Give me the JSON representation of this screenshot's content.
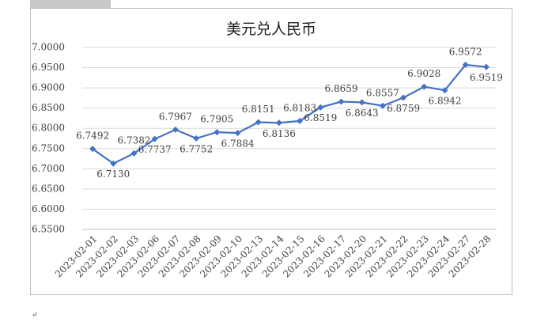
{
  "chart_data": {
    "type": "line",
    "title": "美元兑人民币",
    "categories": [
      "2023-02-01",
      "2023-02-02",
      "2023-02-03",
      "2023-02-06",
      "2023-02-07",
      "2023-02-08",
      "2023-02-09",
      "2023-02-10",
      "2023-02-13",
      "2023-02-14",
      "2023-02-15",
      "2023-02-16",
      "2023-02-17",
      "2023-02-20",
      "2023-02-21",
      "2023-02-22",
      "2023-02-23",
      "2023-02-24",
      "2023-02-27",
      "2023-02-28"
    ],
    "series": [
      {
        "name": "美元兑人民币",
        "color": "#4472c4",
        "values": [
          6.7492,
          6.713,
          6.7382,
          6.7737,
          6.7967,
          6.7752,
          6.7905,
          6.7884,
          6.8151,
          6.8136,
          6.8183,
          6.8519,
          6.8659,
          6.8643,
          6.8557,
          6.8759,
          6.9028,
          6.8942,
          6.9572,
          6.9519
        ],
        "value_labels": [
          "6.7492",
          "6.7130",
          "6.7382",
          "6.7737",
          "6.7967",
          "6.7752",
          "6.7905",
          "6.7884",
          "6.8151",
          "6.8136",
          "6.8183",
          "6.8519",
          "6.8659",
          "6.8643",
          "6.8557",
          "6.8759",
          "6.9028",
          "6.8942",
          "6.9572",
          "6.9519"
        ]
      }
    ],
    "ylim": [
      6.55,
      7.0
    ],
    "yticks": [
      {
        "value": 6.55,
        "label": "6.5500"
      },
      {
        "value": 6.6,
        "label": "6.6000"
      },
      {
        "value": 6.65,
        "label": "6.6500"
      },
      {
        "value": 6.7,
        "label": "6.7000"
      },
      {
        "value": 6.75,
        "label": "6.7500"
      },
      {
        "value": 6.8,
        "label": "6.8000"
      },
      {
        "value": 6.85,
        "label": "6.8500"
      },
      {
        "value": 6.9,
        "label": "6.9000"
      },
      {
        "value": 6.95,
        "label": "6.9500"
      },
      {
        "value": 7.0,
        "label": "7.0000"
      }
    ],
    "grid": true
  },
  "paragraph_mark": "↵"
}
